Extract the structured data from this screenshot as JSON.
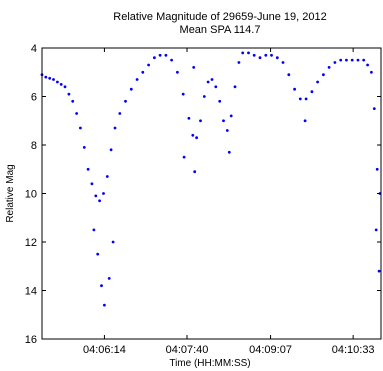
{
  "chart_data": {
    "type": "scatter",
    "title": "Relative Magnitude of 29659-June 19, 2012",
    "subtitle": "Mean SPA 114.7",
    "xlabel": "Time (HH:MM:SS)",
    "ylabel": "Relative Mag",
    "xlim": [
      "04:05:09",
      "04:11:02"
    ],
    "ylim": [
      4,
      16
    ],
    "y_reversed": true,
    "grid": false,
    "marker_color": "#0000ff",
    "x_ticks": [
      "04:06:14",
      "04:07:40",
      "04:09:07",
      "04:10:33"
    ],
    "y_ticks": [
      "4",
      "6",
      "8",
      "10",
      "12",
      "14",
      "16"
    ],
    "series": [
      {
        "points": [
          [
            "04:05:09",
            5.1
          ],
          [
            "04:05:13",
            5.2
          ],
          [
            "04:05:17",
            5.25
          ],
          [
            "04:05:21",
            5.3
          ],
          [
            "04:05:25",
            5.4
          ],
          [
            "04:05:29",
            5.5
          ],
          [
            "04:05:33",
            5.6
          ],
          [
            "04:05:37",
            5.9
          ],
          [
            "04:05:41",
            6.2
          ],
          [
            "04:05:45",
            6.7
          ],
          [
            "04:05:49",
            7.3
          ],
          [
            "04:05:53",
            8.1
          ],
          [
            "04:05:57",
            9.0
          ],
          [
            "04:06:01",
            9.6
          ],
          [
            "04:06:05",
            10.1
          ],
          [
            "04:06:09",
            10.3
          ],
          [
            "04:06:13",
            10.0
          ],
          [
            "04:06:17",
            9.3
          ],
          [
            "04:06:21",
            8.2
          ],
          [
            "04:06:25",
            7.3
          ],
          [
            "04:06:30",
            6.7
          ],
          [
            "04:06:36",
            6.2
          ],
          [
            "04:06:42",
            5.7
          ],
          [
            "04:06:48",
            5.3
          ],
          [
            "04:06:54",
            5.0
          ],
          [
            "04:07:00",
            4.7
          ],
          [
            "04:07:06",
            4.4
          ],
          [
            "04:07:12",
            4.3
          ],
          [
            "04:07:18",
            4.3
          ],
          [
            "04:07:24",
            4.5
          ],
          [
            "04:07:30",
            5.0
          ],
          [
            "04:07:36",
            5.9
          ],
          [
            "04:07:42",
            6.9
          ],
          [
            "04:07:46",
            7.6
          ],
          [
            "04:07:50",
            7.7
          ],
          [
            "04:07:54",
            7.0
          ],
          [
            "04:07:58",
            6.0
          ],
          [
            "04:08:02",
            5.4
          ],
          [
            "04:08:06",
            5.3
          ],
          [
            "04:08:10",
            5.6
          ],
          [
            "04:08:14",
            6.2
          ],
          [
            "04:08:18",
            7.0
          ],
          [
            "04:08:22",
            7.4
          ],
          [
            "04:08:26",
            6.8
          ],
          [
            "04:08:30",
            5.6
          ],
          [
            "04:08:34",
            4.6
          ],
          [
            "04:08:38",
            4.2
          ],
          [
            "04:08:44",
            4.2
          ],
          [
            "04:08:50",
            4.3
          ],
          [
            "04:08:56",
            4.4
          ],
          [
            "04:09:02",
            4.3
          ],
          [
            "04:09:08",
            4.3
          ],
          [
            "04:09:14",
            4.4
          ],
          [
            "04:09:20",
            4.6
          ],
          [
            "04:09:26",
            5.1
          ],
          [
            "04:09:32",
            5.7
          ],
          [
            "04:09:38",
            6.1
          ],
          [
            "04:09:44",
            6.1
          ],
          [
            "04:09:50",
            5.8
          ],
          [
            "04:09:56",
            5.4
          ],
          [
            "04:10:02",
            5.1
          ],
          [
            "04:10:08",
            4.8
          ],
          [
            "04:10:14",
            4.6
          ],
          [
            "04:10:20",
            4.5
          ],
          [
            "04:10:26",
            4.5
          ],
          [
            "04:10:32",
            4.5
          ],
          [
            "04:10:38",
            4.5
          ],
          [
            "04:10:44",
            4.5
          ],
          [
            "04:10:48",
            4.7
          ],
          [
            "04:10:52",
            5.0
          ],
          [
            "04:10:55",
            6.5
          ],
          [
            "04:10:58",
            9.0
          ],
          [
            "04:11:01",
            10.0
          ],
          [
            "04:06:03",
            11.5
          ],
          [
            "04:06:07",
            12.5
          ],
          [
            "04:06:11",
            13.8
          ],
          [
            "04:06:14",
            14.6
          ],
          [
            "04:06:19",
            13.5
          ],
          [
            "04:06:23",
            12.0
          ],
          [
            "04:07:37",
            8.5
          ],
          [
            "04:07:48",
            9.1
          ],
          [
            "04:07:47",
            4.8
          ],
          [
            "04:08:24",
            8.3
          ],
          [
            "04:09:43",
            7.0
          ],
          [
            "04:10:57",
            11.5
          ],
          [
            "04:11:00",
            13.2
          ]
        ]
      }
    ]
  }
}
